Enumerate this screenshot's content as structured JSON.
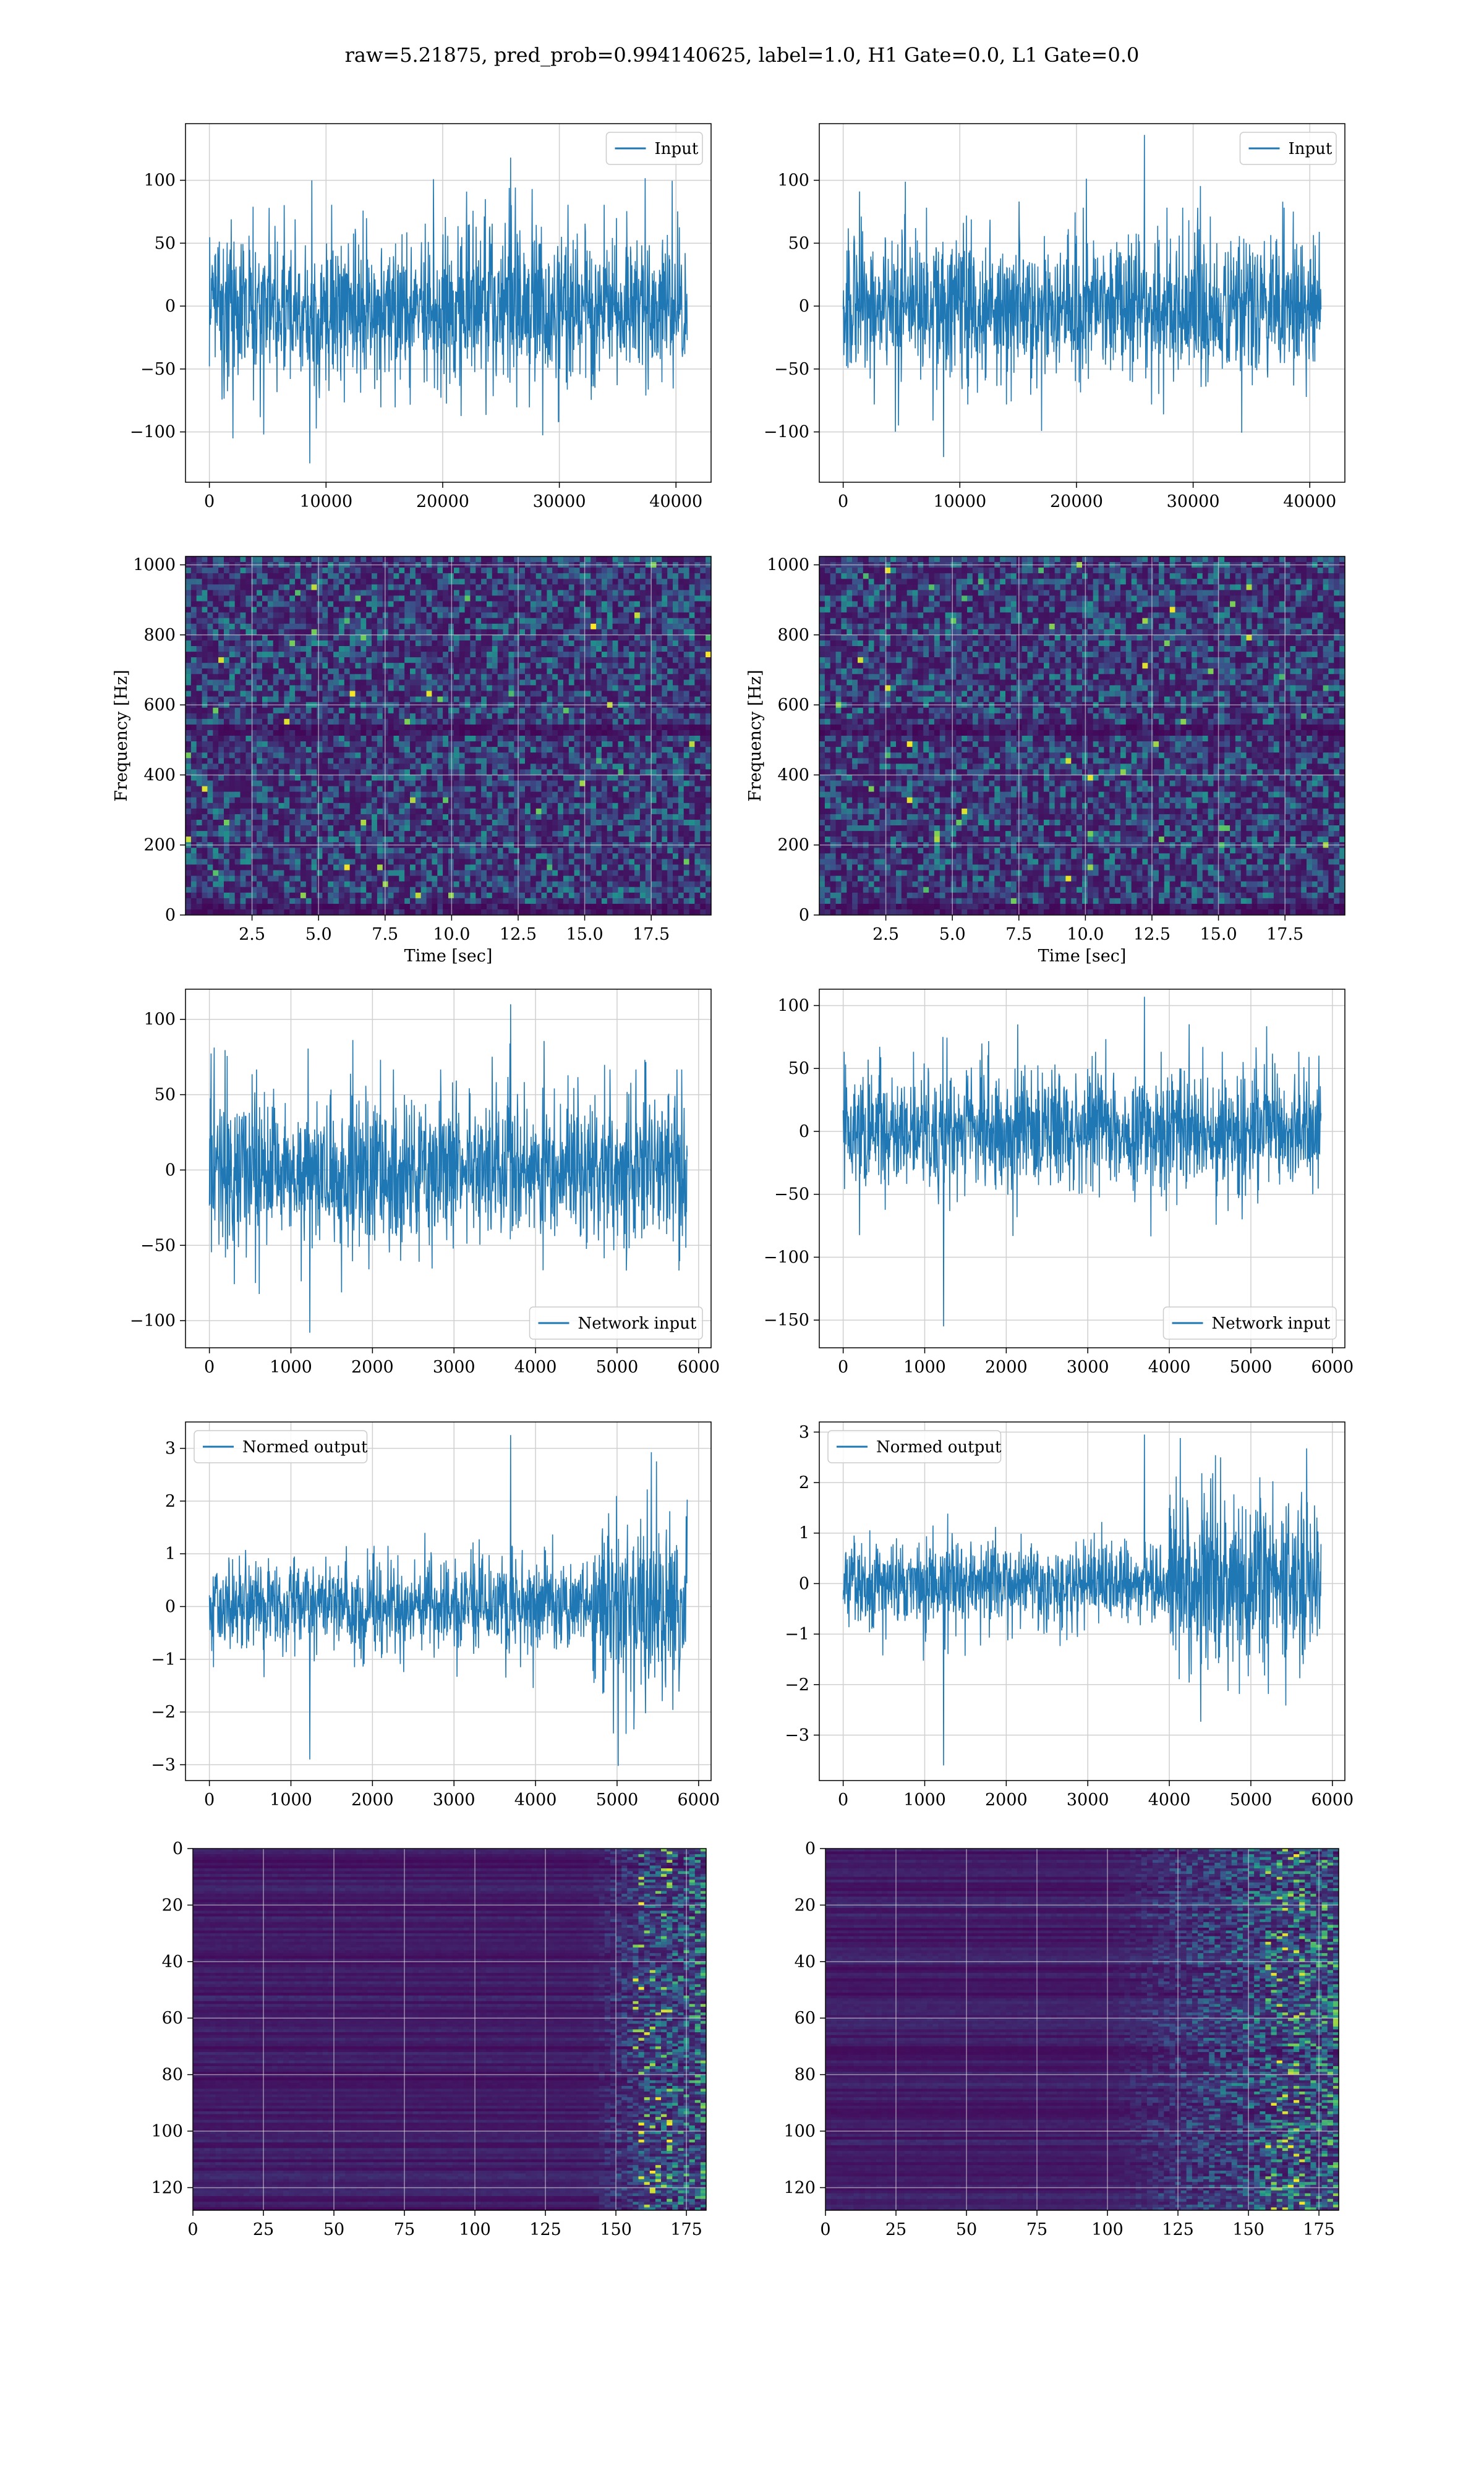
{
  "suptitle": "raw=5.21875, pred_prob=0.994140625, label=1.0, H1 Gate=0.0, L1 Gate=0.0",
  "colors": {
    "line": "#1f77b4",
    "grid": "#d0d0d0",
    "viridis_dark": "#440154",
    "viridis_mid": "#21918c",
    "viridis_bright": "#fde725"
  },
  "chart_data": [
    {
      "id": "input-h1",
      "type": "line",
      "signal": "noise",
      "x_range": [
        0,
        40960
      ],
      "xlim": [
        -2048,
        43008
      ],
      "ylim": [
        -140,
        145
      ],
      "xticks": [
        0,
        10000,
        20000,
        30000,
        40000
      ],
      "xtick_labels": [
        "0",
        "10000",
        "20000",
        "30000",
        "40000"
      ],
      "yticks": [
        -100,
        -50,
        0,
        50,
        100
      ],
      "ytick_labels": [
        "−100",
        "−50",
        "0",
        "50",
        "100"
      ],
      "band": 70,
      "peak_range": [
        -125,
        118
      ],
      "series": [
        {
          "name": "Input"
        }
      ],
      "legend": "upper right",
      "xlabel": "",
      "ylabel": ""
    },
    {
      "id": "input-l1",
      "type": "line",
      "signal": "noise",
      "x_range": [
        0,
        40960
      ],
      "xlim": [
        -2048,
        43008
      ],
      "ylim": [
        -140,
        145
      ],
      "xticks": [
        0,
        10000,
        20000,
        30000,
        40000
      ],
      "xtick_labels": [
        "0",
        "10000",
        "20000",
        "30000",
        "40000"
      ],
      "yticks": [
        -100,
        -50,
        0,
        50,
        100
      ],
      "ytick_labels": [
        "−100",
        "−50",
        "0",
        "50",
        "100"
      ],
      "band": 68,
      "peak_range": [
        -120,
        136
      ],
      "series": [
        {
          "name": "Input"
        }
      ],
      "legend": "upper right",
      "xlabel": "",
      "ylabel": ""
    },
    {
      "id": "spec-h1",
      "type": "heatmap",
      "map": "spectrogram",
      "xlim": [
        0,
        19.75
      ],
      "ylim": [
        0,
        1024
      ],
      "xticks": [
        2.5,
        5.0,
        7.5,
        10.0,
        12.5,
        15.0,
        17.5
      ],
      "xtick_labels": [
        "2.5",
        "5.0",
        "7.5",
        "10.0",
        "12.5",
        "15.0",
        "17.5"
      ],
      "yticks": [
        0,
        200,
        400,
        600,
        800,
        1000
      ],
      "ytick_labels": [
        "0",
        "200",
        "400",
        "600",
        "800",
        "1000"
      ],
      "xlabel": "Time [sec]",
      "ylabel": "Frequency [Hz]"
    },
    {
      "id": "spec-l1",
      "type": "heatmap",
      "map": "spectrogram",
      "xlim": [
        0,
        19.75
      ],
      "ylim": [
        0,
        1024
      ],
      "xticks": [
        2.5,
        5.0,
        7.5,
        10.0,
        12.5,
        15.0,
        17.5
      ],
      "xtick_labels": [
        "2.5",
        "5.0",
        "7.5",
        "10.0",
        "12.5",
        "15.0",
        "17.5"
      ],
      "yticks": [
        0,
        200,
        400,
        600,
        800,
        1000
      ],
      "ytick_labels": [
        "0",
        "200",
        "400",
        "600",
        "800",
        "1000"
      ],
      "xlabel": "Time [sec]",
      "ylabel": "Frequency [Hz]"
    },
    {
      "id": "net-h1",
      "type": "line",
      "signal": "noise",
      "x_range": [
        0,
        5860
      ],
      "xlim": [
        -293,
        6153
      ],
      "ylim": [
        -118,
        120
      ],
      "xticks": [
        0,
        1000,
        2000,
        3000,
        4000,
        5000,
        6000
      ],
      "xtick_labels": [
        "0",
        "1000",
        "2000",
        "3000",
        "4000",
        "5000",
        "6000"
      ],
      "yticks": [
        -100,
        -50,
        0,
        50,
        100
      ],
      "ytick_labels": [
        "−100",
        "−50",
        "0",
        "50",
        "100"
      ],
      "band": 58,
      "peak_range": [
        -108,
        110
      ],
      "series": [
        {
          "name": "Network input"
        }
      ],
      "legend": "lower right",
      "xlabel": "",
      "ylabel": ""
    },
    {
      "id": "net-l1",
      "type": "line",
      "signal": "noise",
      "x_range": [
        0,
        5860
      ],
      "xlim": [
        -293,
        6153
      ],
      "ylim": [
        -172,
        113
      ],
      "xticks": [
        0,
        1000,
        2000,
        3000,
        4000,
        5000,
        6000
      ],
      "xtick_labels": [
        "0",
        "1000",
        "2000",
        "3000",
        "4000",
        "5000",
        "6000"
      ],
      "yticks": [
        -150,
        -100,
        -50,
        0,
        50,
        100
      ],
      "ytick_labels": [
        "−150",
        "−100",
        "−50",
        "0",
        "50",
        "100"
      ],
      "band": 55,
      "peak_range": [
        -155,
        107
      ],
      "series": [
        {
          "name": "Network input"
        }
      ],
      "legend": "lower right",
      "xlabel": "",
      "ylabel": ""
    },
    {
      "id": "norm-h1",
      "type": "line",
      "signal": "burst",
      "x_range": [
        0,
        5860
      ],
      "xlim": [
        -293,
        6153
      ],
      "ylim": [
        -3.3,
        3.5
      ],
      "xticks": [
        0,
        1000,
        2000,
        3000,
        4000,
        5000,
        6000
      ],
      "xtick_labels": [
        "0",
        "1000",
        "2000",
        "3000",
        "4000",
        "5000",
        "6000"
      ],
      "yticks": [
        -3,
        -2,
        -1,
        0,
        1,
        2,
        3
      ],
      "ytick_labels": [
        "−3",
        "−2",
        "−1",
        "0",
        "1",
        "2",
        "3"
      ],
      "band": 1.0,
      "burst_start": 4700,
      "burst_gain": 2.1,
      "peak_range": [
        -2.9,
        3.25
      ],
      "series": [
        {
          "name": "Normed output"
        }
      ],
      "legend": "upper left",
      "xlabel": "",
      "ylabel": ""
    },
    {
      "id": "norm-l1",
      "type": "line",
      "signal": "burst",
      "x_range": [
        0,
        5860
      ],
      "xlim": [
        -293,
        6153
      ],
      "ylim": [
        -3.9,
        3.2
      ],
      "xticks": [
        0,
        1000,
        2000,
        3000,
        4000,
        5000,
        6000
      ],
      "xtick_labels": [
        "0",
        "1000",
        "2000",
        "3000",
        "4000",
        "5000",
        "6000"
      ],
      "yticks": [
        -3,
        -2,
        -1,
        0,
        1,
        2,
        3
      ],
      "ytick_labels": [
        "−3",
        "−2",
        "−1",
        "0",
        "1",
        "2",
        "3"
      ],
      "band": 1.0,
      "burst_start": 4000,
      "burst_gain": 1.9,
      "peak_range": [
        -3.6,
        2.95
      ],
      "series": [
        {
          "name": "Normed output"
        }
      ],
      "legend": "upper left",
      "xlabel": "",
      "ylabel": ""
    },
    {
      "id": "feat-h1",
      "type": "heatmap",
      "map": "features",
      "xlim": [
        0,
        182
      ],
      "ylim": [
        128,
        0
      ],
      "active_from": 140,
      "xticks": [
        0,
        25,
        50,
        75,
        100,
        125,
        150,
        175
      ],
      "xtick_labels": [
        "0",
        "25",
        "50",
        "75",
        "100",
        "125",
        "150",
        "175"
      ],
      "yticks": [
        0,
        20,
        40,
        60,
        80,
        100,
        120
      ],
      "ytick_labels": [
        "0",
        "20",
        "40",
        "60",
        "80",
        "100",
        "120"
      ],
      "xlabel": "",
      "ylabel": ""
    },
    {
      "id": "feat-l1",
      "type": "heatmap",
      "map": "features",
      "xlim": [
        0,
        182
      ],
      "ylim": [
        128,
        0
      ],
      "active_from": 100,
      "xticks": [
        0,
        25,
        50,
        75,
        100,
        125,
        150,
        175
      ],
      "xtick_labels": [
        "0",
        "25",
        "50",
        "75",
        "100",
        "125",
        "150",
        "175"
      ],
      "yticks": [
        0,
        20,
        40,
        60,
        80,
        100,
        120
      ],
      "ytick_labels": [
        "0",
        "20",
        "40",
        "60",
        "80",
        "100",
        "120"
      ],
      "xlabel": "",
      "ylabel": ""
    }
  ]
}
